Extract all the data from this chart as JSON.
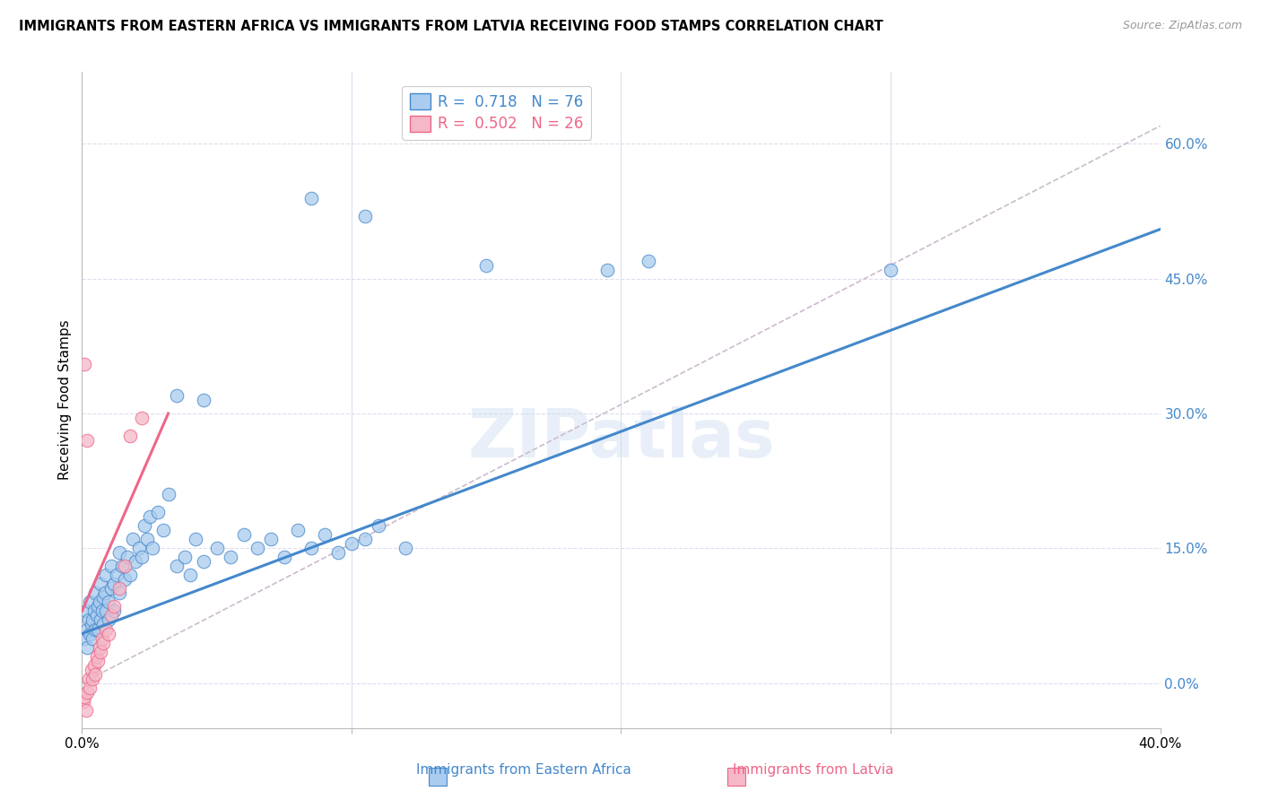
{
  "title": "IMMIGRANTS FROM EASTERN AFRICA VS IMMIGRANTS FROM LATVIA RECEIVING FOOD STAMPS CORRELATION CHART",
  "source": "Source: ZipAtlas.com",
  "ylabel": "Receiving Food Stamps",
  "right_ytick_vals": [
    0.0,
    15.0,
    30.0,
    45.0,
    60.0
  ],
  "xlim": [
    0.0,
    40.0
  ],
  "ylim": [
    -5.0,
    68.0
  ],
  "watermark": "ZIPatlas",
  "blue_color": "#aaccee",
  "pink_color": "#f4b8c8",
  "line_blue": "#4488cc",
  "line_pink": "#ee6688",
  "line_diag_color": "#ccbbcc",
  "grid_color": "#ddddee",
  "blue_line_x0": 0.0,
  "blue_line_y0": 5.5,
  "blue_line_x1": 40.0,
  "blue_line_y1": 50.5,
  "pink_line_x0": 0.0,
  "pink_line_y0": 8.0,
  "pink_line_x1": 3.2,
  "pink_line_y1": 30.0,
  "diag_x0": 0.0,
  "diag_y0": 0.0,
  "diag_x1": 40.0,
  "diag_y1": 62.0,
  "scatter_blue": [
    [
      0.1,
      5.0
    ],
    [
      0.15,
      8.0
    ],
    [
      0.2,
      6.0
    ],
    [
      0.2,
      4.0
    ],
    [
      0.25,
      7.0
    ],
    [
      0.3,
      5.5
    ],
    [
      0.3,
      9.0
    ],
    [
      0.35,
      6.5
    ],
    [
      0.4,
      7.0
    ],
    [
      0.4,
      5.0
    ],
    [
      0.45,
      8.0
    ],
    [
      0.5,
      6.0
    ],
    [
      0.5,
      10.0
    ],
    [
      0.55,
      7.5
    ],
    [
      0.6,
      8.5
    ],
    [
      0.6,
      6.0
    ],
    [
      0.65,
      9.0
    ],
    [
      0.7,
      7.0
    ],
    [
      0.7,
      11.0
    ],
    [
      0.75,
      8.0
    ],
    [
      0.8,
      9.5
    ],
    [
      0.8,
      6.5
    ],
    [
      0.85,
      10.0
    ],
    [
      0.9,
      8.0
    ],
    [
      0.9,
      12.0
    ],
    [
      1.0,
      9.0
    ],
    [
      1.0,
      7.0
    ],
    [
      1.1,
      10.5
    ],
    [
      1.1,
      13.0
    ],
    [
      1.2,
      11.0
    ],
    [
      1.2,
      8.0
    ],
    [
      1.3,
      12.0
    ],
    [
      1.4,
      10.0
    ],
    [
      1.4,
      14.5
    ],
    [
      1.5,
      13.0
    ],
    [
      1.6,
      11.5
    ],
    [
      1.7,
      14.0
    ],
    [
      1.8,
      12.0
    ],
    [
      1.9,
      16.0
    ],
    [
      2.0,
      13.5
    ],
    [
      2.1,
      15.0
    ],
    [
      2.2,
      14.0
    ],
    [
      2.3,
      17.5
    ],
    [
      2.4,
      16.0
    ],
    [
      2.5,
      18.5
    ],
    [
      2.6,
      15.0
    ],
    [
      2.8,
      19.0
    ],
    [
      3.0,
      17.0
    ],
    [
      3.2,
      21.0
    ],
    [
      3.5,
      13.0
    ],
    [
      3.8,
      14.0
    ],
    [
      4.0,
      12.0
    ],
    [
      4.2,
      16.0
    ],
    [
      4.5,
      13.5
    ],
    [
      5.0,
      15.0
    ],
    [
      5.5,
      14.0
    ],
    [
      6.0,
      16.5
    ],
    [
      6.5,
      15.0
    ],
    [
      7.0,
      16.0
    ],
    [
      7.5,
      14.0
    ],
    [
      8.0,
      17.0
    ],
    [
      8.5,
      15.0
    ],
    [
      9.0,
      16.5
    ],
    [
      9.5,
      14.5
    ],
    [
      10.0,
      15.5
    ],
    [
      10.5,
      16.0
    ],
    [
      11.0,
      17.5
    ],
    [
      12.0,
      15.0
    ],
    [
      3.5,
      32.0
    ],
    [
      4.5,
      31.5
    ],
    [
      8.5,
      54.0
    ],
    [
      10.5,
      52.0
    ],
    [
      15.0,
      46.5
    ],
    [
      19.5,
      46.0
    ],
    [
      21.0,
      47.0
    ],
    [
      30.0,
      46.0
    ]
  ],
  "scatter_pink": [
    [
      0.05,
      -2.0
    ],
    [
      0.1,
      -1.5
    ],
    [
      0.15,
      -3.0
    ],
    [
      0.2,
      -1.0
    ],
    [
      0.25,
      0.5
    ],
    [
      0.3,
      -0.5
    ],
    [
      0.35,
      1.5
    ],
    [
      0.4,
      0.5
    ],
    [
      0.45,
      2.0
    ],
    [
      0.5,
      1.0
    ],
    [
      0.55,
      3.0
    ],
    [
      0.6,
      2.5
    ],
    [
      0.65,
      4.0
    ],
    [
      0.7,
      3.5
    ],
    [
      0.75,
      5.0
    ],
    [
      0.8,
      4.5
    ],
    [
      0.9,
      6.0
    ],
    [
      1.0,
      5.5
    ],
    [
      1.1,
      7.5
    ],
    [
      1.2,
      8.5
    ],
    [
      1.4,
      10.5
    ],
    [
      1.6,
      13.0
    ],
    [
      1.8,
      27.5
    ],
    [
      2.2,
      29.5
    ],
    [
      0.1,
      35.5
    ],
    [
      0.2,
      27.0
    ]
  ]
}
